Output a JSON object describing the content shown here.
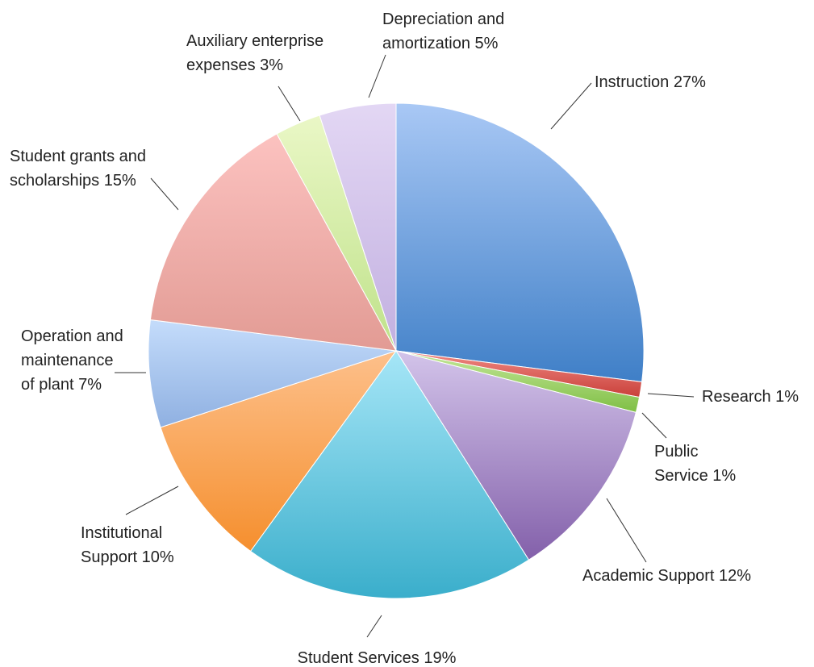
{
  "chart_data": {
    "type": "pie",
    "title": "",
    "start_angle_deg": 0,
    "direction": "clockwise",
    "slices": [
      {
        "key": "instruction",
        "label_lines": [
          "Instruction 27%"
        ],
        "name": "Instruction",
        "percent": 27,
        "colors": [
          "#a9c8f5",
          "#3f7fc7"
        ]
      },
      {
        "key": "research",
        "label_lines": [
          "Research 1%"
        ],
        "name": "Research",
        "percent": 1,
        "colors": [
          "#f08a84",
          "#c9403a"
        ]
      },
      {
        "key": "public-service",
        "label_lines": [
          "Public",
          "Service 1%"
        ],
        "name": "Public Service",
        "percent": 1,
        "colors": [
          "#c5e79a",
          "#7fbf45"
        ]
      },
      {
        "key": "academic-support",
        "label_lines": [
          "Academic Support 12%"
        ],
        "name": "Academic Support",
        "percent": 12,
        "colors": [
          "#d3c4ea",
          "#8360aa"
        ]
      },
      {
        "key": "student-services",
        "label_lines": [
          "Student Services 19%"
        ],
        "name": "Student Services",
        "percent": 19,
        "colors": [
          "#a6e6f7",
          "#3aaecb"
        ]
      },
      {
        "key": "institutional-support",
        "label_lines": [
          "Institutional",
          "Support 10%"
        ],
        "name": "Institutional Support",
        "percent": 10,
        "colors": [
          "#fdc08b",
          "#f58f2e"
        ]
      },
      {
        "key": "operation-maintenance",
        "label_lines": [
          "Operation and",
          "maintenance",
          "of plant 7%"
        ],
        "name": "Operation and maintenance of plant",
        "percent": 7,
        "colors": [
          "#c4dcfb",
          "#8fb0e1"
        ]
      },
      {
        "key": "student-grants",
        "label_lines": [
          "Student grants and",
          "scholarships 15%"
        ],
        "name": "Student grants and scholarships",
        "percent": 15,
        "colors": [
          "#fcc2c0",
          "#e29b94"
        ]
      },
      {
        "key": "auxiliary",
        "label_lines": [
          "Auxiliary enterprise",
          "expenses 3%"
        ],
        "name": "Auxiliary enterprise expenses",
        "percent": 3,
        "colors": [
          "#eaf7c6",
          "#bfe28a"
        ]
      },
      {
        "key": "depreciation",
        "label_lines": [
          "Depreciation and",
          "amortization 5%"
        ],
        "name": "Depreciation and amortization",
        "percent": 5,
        "colors": [
          "#e3d7f4",
          "#c2b0e0"
        ]
      }
    ]
  }
}
